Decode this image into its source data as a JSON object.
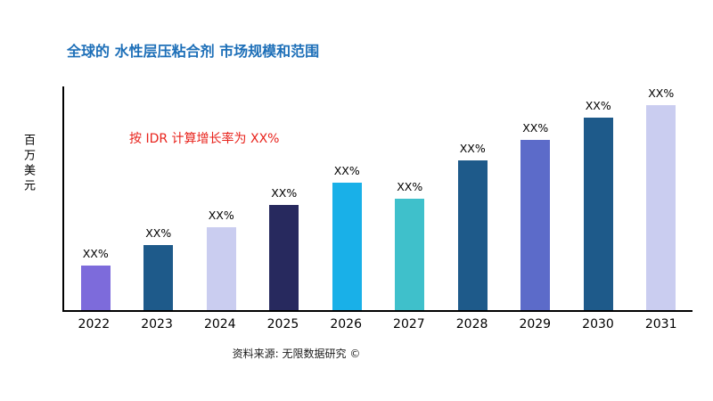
{
  "page": {
    "title": "全球的 水性层压粘合剂 市场规模和范围",
    "growth_note": "按 IDR 计算增长率为 XX%",
    "y_axis_label": "百万美元",
    "source": "资料来源: 无限数据研究 ©"
  },
  "colors": {
    "title": "#1d6fb8",
    "growth_note": "#e8221b",
    "axis": "#000000",
    "bar_label": "#000000"
  },
  "chart_data": {
    "type": "bar",
    "title": "全球的 水性层压粘合剂 市场规模和范围",
    "annotation": "按 IDR 计算增长率为 XX%",
    "categories": [
      "2022",
      "2023",
      "2024",
      "2025",
      "2026",
      "2027",
      "2028",
      "2029",
      "2030",
      "2031"
    ],
    "values": [
      20,
      29,
      37,
      47,
      57,
      50,
      67,
      76,
      86,
      95
    ],
    "bar_labels": [
      "XX%",
      "XX%",
      "XX%",
      "XX%",
      "XX%",
      "XX%",
      "XX%",
      "XX%",
      "XX%",
      "XX%"
    ],
    "bar_colors": [
      "#7d6bdb",
      "#1e5a8a",
      "#cacdf0",
      "#27295e",
      "#19b0e8",
      "#3fc0cb",
      "#1e5a8a",
      "#5c6bc9",
      "#1e5a8a",
      "#cacdf0"
    ],
    "xlabel": "",
    "ylabel": "百万美元",
    "ylim": [
      0,
      100
    ],
    "grid": false,
    "legend": false,
    "note": "y-axis has no numeric tick labels; values are relative bar heights on a 0-100 scale"
  }
}
